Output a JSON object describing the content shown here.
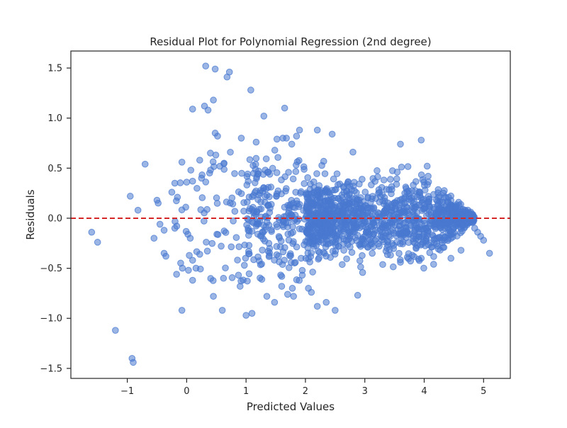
{
  "colors": {
    "point": "#4878d0",
    "zero_line": "#d62728",
    "axis": "#262626",
    "background": "#ffffff"
  },
  "chart_data": {
    "type": "scatter",
    "title": "Residual Plot for Polynomial Regression (2nd degree)",
    "xlabel": "Predicted Values",
    "ylabel": "Residuals",
    "xlim": [
      -1.95,
      5.45
    ],
    "ylim": [
      -1.6,
      1.67
    ],
    "xticks": [
      -1,
      0,
      1,
      2,
      3,
      4,
      5
    ],
    "xtick_labels": [
      "−1",
      "0",
      "1",
      "2",
      "3",
      "4",
      "5"
    ],
    "yticks": [
      -1.5,
      -1.0,
      -0.5,
      0.0,
      0.5,
      1.0,
      1.5
    ],
    "ytick_labels": [
      "−1.5",
      "−1.0",
      "−0.5",
      "0.0",
      "0.5",
      "1.0",
      "1.5"
    ],
    "grid": false,
    "reference_line": {
      "y": 0,
      "style": "dashed"
    },
    "points_note": "dense cloud; outer points listed explicitly",
    "points": [
      [
        0.32,
        1.52
      ],
      [
        0.48,
        1.49
      ],
      [
        0.72,
        1.46
      ],
      [
        0.68,
        1.41
      ],
      [
        1.08,
        1.28
      ],
      [
        0.45,
        1.18
      ],
      [
        0.3,
        1.12
      ],
      [
        0.36,
        1.08
      ],
      [
        0.1,
        1.09
      ],
      [
        1.3,
        1.02
      ],
      [
        1.65,
        1.1
      ],
      [
        1.9,
        0.88
      ],
      [
        2.2,
        0.88
      ],
      [
        2.45,
        0.84
      ],
      [
        1.85,
        0.82
      ],
      [
        1.62,
        0.8
      ],
      [
        1.68,
        0.8
      ],
      [
        1.52,
        0.79
      ],
      [
        0.48,
        0.85
      ],
      [
        0.52,
        0.82
      ],
      [
        0.92,
        0.8
      ],
      [
        1.17,
        0.76
      ],
      [
        1.77,
        0.74
      ],
      [
        2.8,
        0.66
      ],
      [
        3.6,
        0.74
      ],
      [
        3.95,
        0.78
      ],
      [
        4.05,
        0.52
      ],
      [
        -0.7,
        0.54
      ],
      [
        -0.95,
        0.22
      ],
      [
        -0.82,
        0.08
      ],
      [
        -0.5,
        0.18
      ],
      [
        -0.48,
        0.15
      ],
      [
        -0.25,
        0.26
      ],
      [
        -0.2,
        0.35
      ],
      [
        0.0,
        0.36
      ],
      [
        0.1,
        0.37
      ],
      [
        0.25,
        0.4
      ],
      [
        -0.08,
        0.56
      ],
      [
        0.07,
        0.48
      ],
      [
        0.22,
        0.58
      ],
      [
        0.4,
        0.65
      ],
      [
        0.63,
        0.55
      ],
      [
        0.02,
        -0.16
      ],
      [
        0.06,
        -0.2
      ],
      [
        -0.2,
        -0.1
      ],
      [
        -0.38,
        -0.12
      ],
      [
        -0.45,
        -0.06
      ],
      [
        -0.55,
        -0.2
      ],
      [
        -0.38,
        -0.35
      ],
      [
        -0.35,
        -0.38
      ],
      [
        -0.17,
        -0.56
      ],
      [
        0.03,
        -0.52
      ],
      [
        0.1,
        -0.42
      ],
      [
        0.1,
        -0.62
      ],
      [
        0.22,
        -0.36
      ],
      [
        -0.08,
        -0.92
      ],
      [
        0.6,
        -0.92
      ],
      [
        0.45,
        -0.78
      ],
      [
        0.62,
        -0.6
      ],
      [
        0.9,
        -0.68
      ],
      [
        1.0,
        -0.97
      ],
      [
        1.1,
        -0.95
      ],
      [
        1.35,
        -0.78
      ],
      [
        1.48,
        -0.84
      ],
      [
        1.6,
        -0.68
      ],
      [
        1.7,
        -0.76
      ],
      [
        1.8,
        -0.78
      ],
      [
        1.78,
        -0.7
      ],
      [
        2.05,
        -0.7
      ],
      [
        2.1,
        -0.74
      ],
      [
        2.2,
        -0.88
      ],
      [
        2.35,
        -0.84
      ],
      [
        2.5,
        -0.92
      ],
      [
        2.88,
        -0.77
      ],
      [
        -1.6,
        -0.14
      ],
      [
        -1.5,
        -0.24
      ],
      [
        -1.2,
        -1.12
      ],
      [
        -0.92,
        -1.4
      ],
      [
        -0.9,
        -1.44
      ],
      [
        4.85,
        -0.1
      ],
      [
        4.9,
        -0.14
      ],
      [
        4.95,
        -0.18
      ],
      [
        5.0,
        -0.22
      ],
      [
        5.1,
        -0.35
      ],
      [
        4.62,
        -0.32
      ],
      [
        4.45,
        -0.4
      ],
      [
        3.95,
        -0.4
      ],
      [
        3.8,
        -0.37
      ],
      [
        3.6,
        -0.44
      ]
    ]
  }
}
